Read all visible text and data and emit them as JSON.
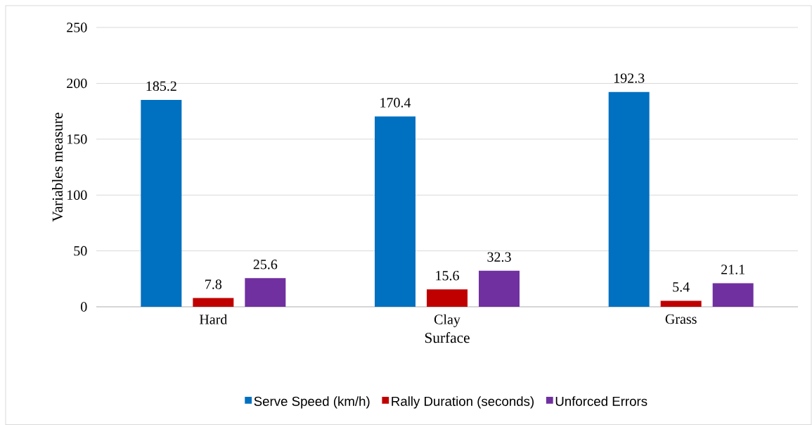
{
  "chart_data": {
    "type": "bar",
    "xlabel": "Surface",
    "ylabel": "Variables measure",
    "categories": [
      "Hard",
      "Clay",
      "Grass"
    ],
    "series": [
      {
        "name": "Serve Speed (km/h)",
        "color": "#0070c0",
        "values": [
          185.2,
          170.4,
          192.3
        ]
      },
      {
        "name": "Rally Duration (seconds)",
        "color": "#c00000",
        "values": [
          7.8,
          15.6,
          5.4
        ]
      },
      {
        "name": "Unforced Errors",
        "color": "#7030a0",
        "values": [
          25.6,
          32.3,
          21.1
        ]
      }
    ],
    "ylim": [
      0,
      250
    ],
    "yticks": [
      0,
      50,
      100,
      150,
      200,
      250
    ],
    "grid": "y",
    "legend": "bottom",
    "data_labels": true
  }
}
